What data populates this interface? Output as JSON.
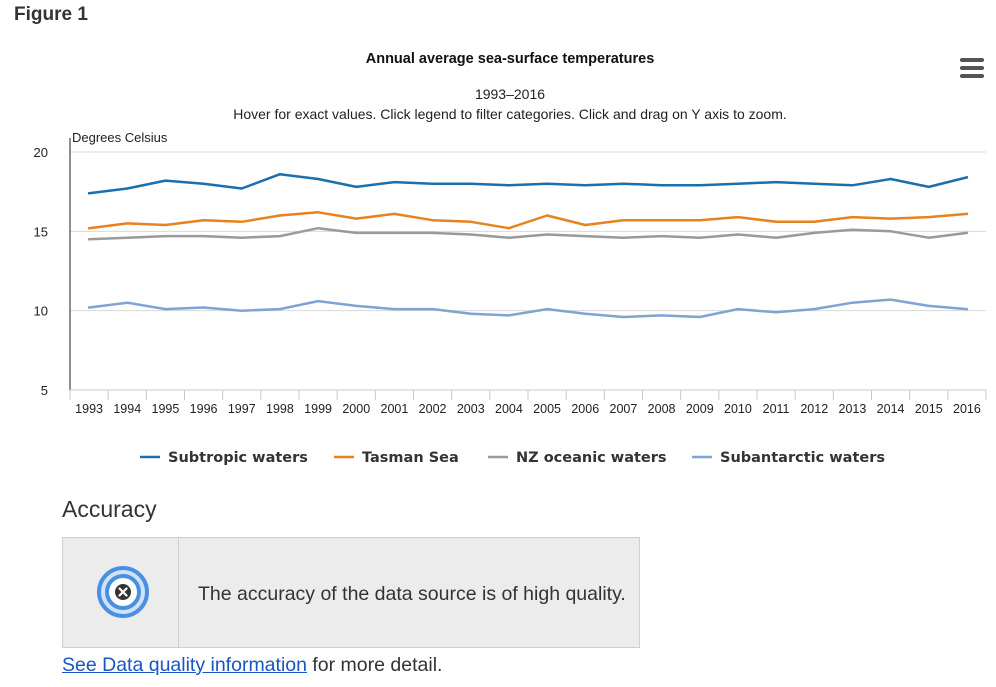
{
  "figure_label": "Figure 1",
  "chart_data": {
    "type": "line",
    "title": "Annual average sea-surface temperatures",
    "subtitle": "1993–2016",
    "instructions": "Hover for exact values. Click legend to filter categories. Click and drag on Y axis to zoom.",
    "ylabel": "Degrees Celsius",
    "xlabel": "",
    "ylim": [
      5,
      20
    ],
    "yticks": [
      5,
      10,
      15,
      20
    ],
    "grid": true,
    "legend_position": "bottom",
    "categories": [
      "1993",
      "1994",
      "1995",
      "1996",
      "1997",
      "1998",
      "1999",
      "2000",
      "2001",
      "2002",
      "2003",
      "2004",
      "2005",
      "2006",
      "2007",
      "2008",
      "2009",
      "2010",
      "2011",
      "2012",
      "2013",
      "2014",
      "2015",
      "2016"
    ],
    "series": [
      {
        "name": "Subtropic waters",
        "color": "#1a6faf",
        "values": [
          17.4,
          17.7,
          18.2,
          18.0,
          17.7,
          18.6,
          18.3,
          17.8,
          18.1,
          18.0,
          18.0,
          17.9,
          18.0,
          17.9,
          18.0,
          17.9,
          17.9,
          18.0,
          18.1,
          18.0,
          17.9,
          18.3,
          17.8,
          18.4
        ]
      },
      {
        "name": "Tasman Sea",
        "color": "#e8821e",
        "values": [
          15.2,
          15.5,
          15.4,
          15.7,
          15.6,
          16.0,
          16.2,
          15.8,
          16.1,
          15.7,
          15.6,
          15.2,
          16.0,
          15.4,
          15.7,
          15.7,
          15.7,
          15.9,
          15.6,
          15.6,
          15.9,
          15.8,
          15.9,
          16.1
        ]
      },
      {
        "name": "NZ oceanic waters",
        "color": "#9a9a9a",
        "values": [
          14.5,
          14.6,
          14.7,
          14.7,
          14.6,
          14.7,
          15.2,
          14.9,
          14.9,
          14.9,
          14.8,
          14.6,
          14.8,
          14.7,
          14.6,
          14.7,
          14.6,
          14.8,
          14.6,
          14.9,
          15.1,
          15.0,
          14.6,
          14.9
        ]
      },
      {
        "name": "Subantarctic waters",
        "color": "#7fa3d2",
        "values": [
          10.2,
          10.5,
          10.1,
          10.2,
          10.0,
          10.1,
          10.6,
          10.3,
          10.1,
          10.1,
          9.8,
          9.7,
          10.1,
          9.8,
          9.6,
          9.7,
          9.6,
          10.1,
          9.9,
          10.1,
          10.5,
          10.7,
          10.3,
          10.1
        ]
      }
    ]
  },
  "accuracy": {
    "heading": "Accuracy",
    "icon": "target-icon",
    "text": "The accuracy of the data source is of high quality."
  },
  "footer": {
    "link_text": "See Data quality information",
    "suffix": " for more detail."
  }
}
